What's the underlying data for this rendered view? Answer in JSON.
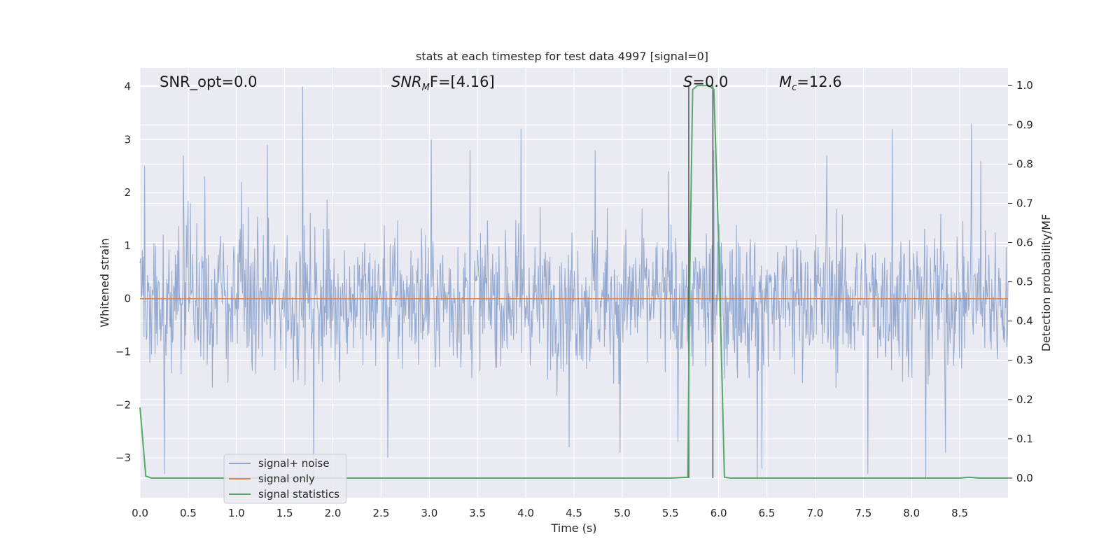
{
  "chart_data": {
    "type": "line",
    "title": "stats at each timestep for test data 4997 [signal=0]",
    "xlabel": "Time (s)",
    "ylabel": "Whitened strain",
    "y2label": "Detection probability/MF",
    "xlim": [
      0.0,
      9.0
    ],
    "ylim": [
      -3.75,
      4.35
    ],
    "y2lim": [
      -0.05,
      1.045
    ],
    "xticks": [
      "0.0",
      "0.5",
      "1.0",
      "1.5",
      "2.0",
      "2.5",
      "3.0",
      "3.5",
      "4.0",
      "4.5",
      "5.0",
      "5.5",
      "6.0",
      "6.5",
      "7.0",
      "7.5",
      "8.0",
      "8.5"
    ],
    "yticks": [
      "−3",
      "−2",
      "−1",
      "0",
      "1",
      "2",
      "3",
      "4"
    ],
    "y2ticks": [
      "0.0",
      "0.1",
      "0.2",
      "0.3",
      "0.4",
      "0.5",
      "0.6",
      "0.7",
      "0.8",
      "0.9",
      "1.0"
    ],
    "grid": true,
    "legend_placement": "lower-left",
    "annotations": {
      "snr_opt": "SNR_opt=0.0",
      "snr_mf_main": "SNR",
      "snr_mf_sub": "M",
      "snr_mf_rest": "F=[4.16]",
      "s_main": "S",
      "s_rest": "=0.0",
      "mc_main": "M",
      "mc_sub": "c",
      "mc_rest": "=12.6"
    },
    "series": [
      {
        "name": "signal+ noise",
        "color": "#8fa5cd",
        "description_values": "whitened strain noise, amplitude within approx. ±1, spikes to ~4.0 at t≈1.7 and ~−3.4 at t≈1.8, ~−3.4 at t≈6.4 and t≈8.15",
        "peaks": [
          [
            0.05,
            2.5
          ],
          [
            0.25,
            2.1
          ],
          [
            0.45,
            2.7
          ],
          [
            0.67,
            2.3
          ],
          [
            1.05,
            2.2
          ],
          [
            1.32,
            2.9
          ],
          [
            1.69,
            4.0
          ],
          [
            1.8,
            -3.4
          ],
          [
            0.25,
            -3.3
          ],
          [
            2.57,
            -3.0
          ],
          [
            3.02,
            3.0
          ],
          [
            3.42,
            2.8
          ],
          [
            3.95,
            3.2
          ],
          [
            4.45,
            -2.8
          ],
          [
            4.72,
            2.8
          ],
          [
            4.98,
            -2.9
          ],
          [
            5.48,
            2.4
          ],
          [
            5.58,
            -2.7
          ],
          [
            5.95,
            2.8
          ],
          [
            6.4,
            -3.4
          ],
          [
            6.45,
            -3.2
          ],
          [
            7.12,
            2.7
          ],
          [
            7.55,
            -3.3
          ],
          [
            7.8,
            3.2
          ],
          [
            8.15,
            -3.4
          ],
          [
            8.35,
            -2.9
          ],
          [
            8.62,
            3.3
          ],
          [
            8.72,
            2.6
          ]
        ]
      },
      {
        "name": "signal only",
        "color": "#dd8452",
        "x": [
          0.0,
          9.0
        ],
        "y": [
          0.0,
          0.0
        ]
      },
      {
        "name": "signal statistics",
        "color": "#55a868",
        "axis": "right",
        "x": [
          0.0,
          0.06,
          0.12,
          0.5,
          1.0,
          2.0,
          3.0,
          4.0,
          5.0,
          5.5,
          5.68,
          5.7,
          5.73,
          5.78,
          5.83,
          5.9,
          5.95,
          6.0,
          6.06,
          6.12,
          7.0,
          8.0,
          8.5,
          8.6,
          8.7,
          9.0
        ],
        "y": [
          0.18,
          0.005,
          0.0,
          0.0,
          0.0,
          0.0,
          0.0,
          0.0,
          0.0,
          0.0,
          0.002,
          0.5,
          0.99,
          1.0,
          1.0,
          1.0,
          0.99,
          0.6,
          0.002,
          0.0,
          0.0,
          0.0,
          0.0,
          0.002,
          0.0,
          0.0
        ]
      }
    ],
    "vertical_markers": [
      5.69,
      5.94
    ]
  }
}
